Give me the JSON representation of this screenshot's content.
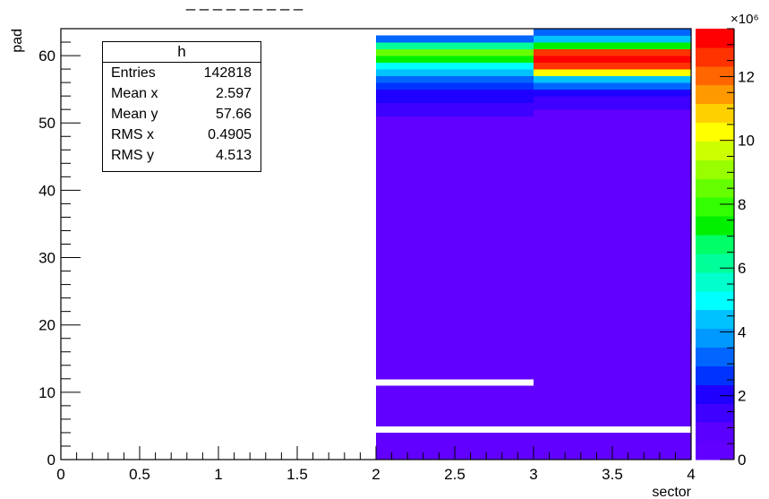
{
  "title": "_ _ _ _ _ _ _ _ _",
  "stats": {
    "name": "h",
    "rows": [
      {
        "label": "Entries",
        "value": "142818"
      },
      {
        "label": "Mean x",
        "value": "2.597"
      },
      {
        "label": "Mean y",
        "value": "57.66"
      },
      {
        "label": "RMS x",
        "value": "0.4905"
      },
      {
        "label": "RMS y",
        "value": "4.513"
      }
    ]
  },
  "chart_data": {
    "type": "heatmap",
    "xlabel": "sector",
    "ylabel": "pad",
    "xlim": [
      0,
      4
    ],
    "ylim": [
      0,
      64
    ],
    "x_ticks": [
      "0",
      "0.5",
      "1",
      "1.5",
      "2",
      "2.5",
      "3",
      "3.5",
      "4"
    ],
    "y_ticks": [
      "0",
      "10",
      "20",
      "30",
      "40",
      "50",
      "60"
    ],
    "colorbar": {
      "min": 0,
      "max": 13.5,
      "exponent_label": "×10⁶",
      "ticks": [
        "0",
        "2",
        "4",
        "6",
        "8",
        "10",
        "12"
      ],
      "palette": [
        "#6100ff",
        "#5a00ff",
        "#3e00ff",
        "#1f00ff",
        "#0033ff",
        "#0066ff",
        "#0099ff",
        "#00c2ff",
        "#00ffff",
        "#00ffcc",
        "#00ff99",
        "#00ff66",
        "#00f000",
        "#33ff00",
        "#66ff00",
        "#99ff00",
        "#ccff00",
        "#ffff00",
        "#ffd000",
        "#ff9900",
        "#ff6600",
        "#ff3300",
        "#ff0000"
      ]
    },
    "cells": [
      {
        "x": [
          2,
          3
        ],
        "y": [
          0,
          4
        ],
        "value": 0.4
      },
      {
        "x": [
          2,
          3
        ],
        "y": [
          5,
          11
        ],
        "value": 0.4
      },
      {
        "x": [
          2,
          3
        ],
        "y": [
          12,
          51
        ],
        "value": 0.4
      },
      {
        "x": [
          2,
          3
        ],
        "y": [
          51,
          53
        ],
        "value": 1.4
      },
      {
        "x": [
          2,
          3
        ],
        "y": [
          53,
          54
        ],
        "value": 1.8
      },
      {
        "x": [
          2,
          3
        ],
        "y": [
          54,
          55
        ],
        "value": 2.2
      },
      {
        "x": [
          2,
          3
        ],
        "y": [
          55,
          56
        ],
        "value": 2.6
      },
      {
        "x": [
          2,
          3
        ],
        "y": [
          56,
          57
        ],
        "value": 3.5
      },
      {
        "x": [
          2,
          3
        ],
        "y": [
          57,
          58
        ],
        "value": 4.4
      },
      {
        "x": [
          2,
          3
        ],
        "y": [
          58,
          59
        ],
        "value": 5.2
      },
      {
        "x": [
          2,
          3
        ],
        "y": [
          59,
          60
        ],
        "value": 7.3
      },
      {
        "x": [
          2,
          3
        ],
        "y": [
          60,
          61
        ],
        "value": 8.8
      },
      {
        "x": [
          2,
          3
        ],
        "y": [
          61,
          62
        ],
        "value": 6.4
      },
      {
        "x": [
          2,
          3
        ],
        "y": [
          62,
          63
        ],
        "value": 3.1
      },
      {
        "x": [
          3,
          4
        ],
        "y": [
          0,
          4
        ],
        "value": 0.4
      },
      {
        "x": [
          3,
          4
        ],
        "y": [
          5,
          52
        ],
        "value": 0.4
      },
      {
        "x": [
          3,
          4
        ],
        "y": [
          52,
          53
        ],
        "value": 1.2
      },
      {
        "x": [
          3,
          4
        ],
        "y": [
          53,
          54
        ],
        "value": 1.5
      },
      {
        "x": [
          3,
          4
        ],
        "y": [
          54,
          55
        ],
        "value": 1.8
      },
      {
        "x": [
          3,
          4
        ],
        "y": [
          55,
          56
        ],
        "value": 3.2
      },
      {
        "x": [
          3,
          4
        ],
        "y": [
          56,
          57
        ],
        "value": 4.3
      },
      {
        "x": [
          3,
          4
        ],
        "y": [
          57,
          58
        ],
        "value": 10.4
      },
      {
        "x": [
          3,
          4
        ],
        "y": [
          58,
          59
        ],
        "value": 12.6
      },
      {
        "x": [
          3,
          4
        ],
        "y": [
          59,
          60
        ],
        "value": 13.4
      },
      {
        "x": [
          3,
          4
        ],
        "y": [
          60,
          61
        ],
        "value": 12.4
      },
      {
        "x": [
          3,
          4
        ],
        "y": [
          61,
          62
        ],
        "value": 7.6
      },
      {
        "x": [
          3,
          4
        ],
        "y": [
          62,
          63
        ],
        "value": 4.3
      },
      {
        "x": [
          3,
          4
        ],
        "y": [
          63,
          64
        ],
        "value": 3.4
      }
    ]
  }
}
